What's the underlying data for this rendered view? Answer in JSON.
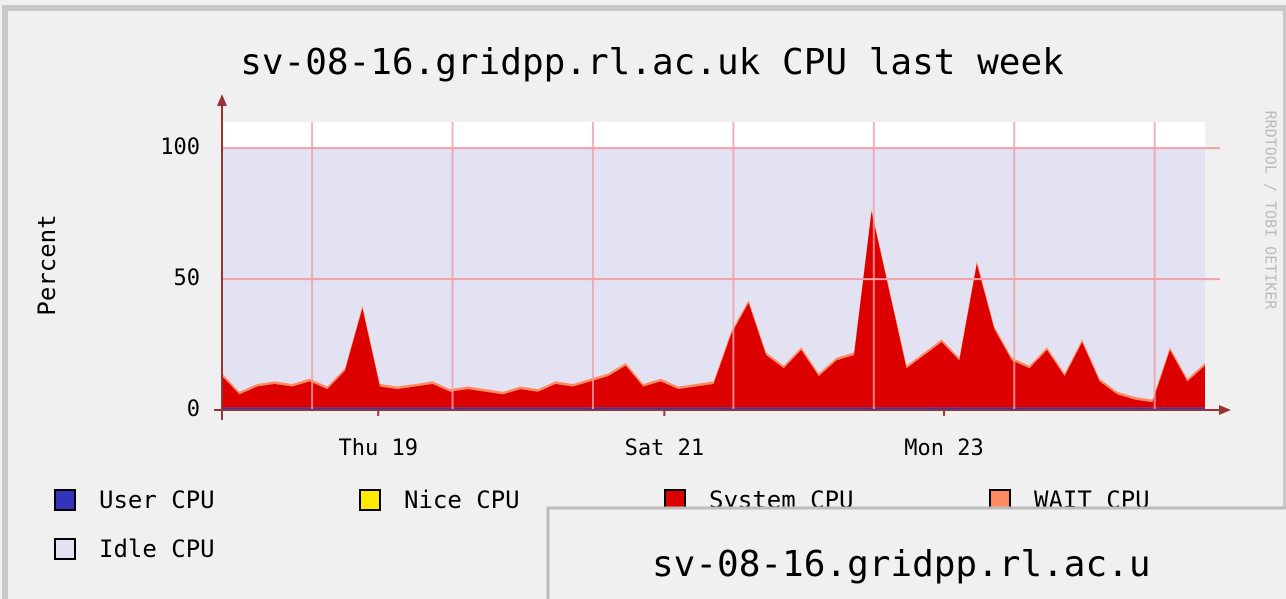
{
  "chart_data": {
    "type": "area",
    "title": "sv-08-16.gridpp.rl.ac.uk CPU last week",
    "y_label": "Percent",
    "side_label": "RRDTOOL / TOBI OETIKER",
    "stacked": true,
    "x": [
      0,
      3,
      6,
      9,
      12,
      15,
      18,
      21,
      24,
      27,
      30,
      33,
      36,
      39,
      42,
      45,
      48,
      51,
      54,
      57,
      60,
      63,
      66,
      69,
      72,
      75,
      78,
      81,
      84,
      87,
      90,
      93,
      96,
      99,
      102,
      105,
      108,
      111,
      114,
      117,
      120,
      123,
      126,
      129,
      132,
      135,
      138,
      141,
      144,
      147,
      150,
      153,
      156,
      159,
      162,
      165,
      168
    ],
    "xlim": [
      0,
      168
    ],
    "xticks": [
      {
        "value": 26.7,
        "label": "Thu 19"
      },
      {
        "value": 75.6,
        "label": "Sat 21"
      },
      {
        "value": 123.4,
        "label": "Mon 23"
      }
    ],
    "x_major_grid": [
      15.4,
      39.4,
      63.4,
      87.4,
      111.4,
      135.4,
      159.4
    ],
    "ylim": [
      0,
      110
    ],
    "yticks": [
      0,
      50,
      100
    ],
    "grid": true,
    "series": [
      {
        "name": "User CPU",
        "color": "#3333bb",
        "values": [
          1,
          1,
          1,
          1,
          1,
          1,
          1,
          1,
          1,
          1,
          1,
          1,
          1,
          1,
          1,
          1,
          1,
          1,
          1,
          1,
          1,
          1,
          1,
          1,
          1,
          1,
          1,
          1,
          1,
          1,
          1,
          1,
          1,
          1,
          1,
          1,
          1,
          1,
          1,
          1,
          1,
          1,
          1,
          1,
          1,
          1,
          1,
          1,
          1,
          1,
          1,
          1,
          1,
          1,
          1,
          1,
          1
        ]
      },
      {
        "name": "Nice CPU",
        "color": "#ffea00",
        "values": [
          0,
          0,
          0,
          0,
          0,
          0,
          0,
          0,
          0,
          0,
          0,
          0,
          0,
          0,
          0,
          0,
          0,
          0,
          0,
          0,
          0,
          0,
          0,
          0,
          0,
          0,
          0,
          0,
          0,
          0,
          0,
          0,
          0,
          0,
          0,
          0,
          0,
          0,
          0,
          0,
          0,
          0,
          0,
          0,
          0,
          0,
          0,
          0,
          0,
          0,
          0,
          0,
          0,
          0,
          0,
          0,
          0
        ]
      },
      {
        "name": "System CPU",
        "color": "#dd0000",
        "values": [
          12,
          5,
          8,
          9,
          8,
          10,
          7,
          14,
          38,
          8,
          7,
          8,
          9,
          6,
          7,
          6,
          5,
          7,
          6,
          9,
          8,
          10,
          12,
          16,
          8,
          10,
          7,
          8,
          9,
          28,
          40,
          20,
          15,
          22,
          12,
          18,
          20,
          75,
          45,
          15,
          20,
          25,
          18,
          55,
          30,
          18,
          15,
          22,
          12,
          25,
          10,
          5,
          3,
          2,
          22,
          10,
          16
        ]
      },
      {
        "name": "WAIT CPU",
        "color": "#ff8a60",
        "values": [
          1,
          1,
          1,
          1,
          1,
          1,
          1,
          1,
          1,
          1,
          1,
          1,
          1,
          1,
          1,
          1,
          1,
          1,
          1,
          1,
          1,
          1,
          1,
          1,
          1,
          1,
          1,
          1,
          1,
          1,
          1,
          1,
          1,
          1,
          1,
          1,
          1,
          1,
          1,
          1,
          1,
          1,
          1,
          1,
          1,
          1,
          1,
          1,
          1,
          1,
          1,
          1,
          1,
          1,
          1,
          1,
          1
        ]
      },
      {
        "name": "Idle CPU",
        "color": "#e2e2f2",
        "values": [
          86,
          93,
          90,
          89,
          90,
          88,
          91,
          84,
          60,
          90,
          91,
          90,
          89,
          92,
          91,
          92,
          93,
          91,
          92,
          89,
          90,
          88,
          86,
          82,
          90,
          88,
          91,
          90,
          89,
          70,
          58,
          78,
          83,
          76,
          86,
          80,
          78,
          23,
          53,
          83,
          78,
          73,
          80,
          43,
          68,
          80,
          83,
          76,
          86,
          73,
          88,
          93,
          95,
          96,
          76,
          88,
          82
        ]
      }
    ]
  },
  "overlay_window_title": "sv-08-16.gridpp.rl.ac.u"
}
